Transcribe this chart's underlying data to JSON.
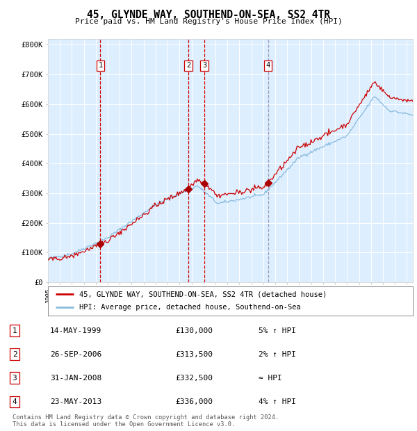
{
  "title": "45, GLYNDE WAY, SOUTHEND-ON-SEA, SS2 4TR",
  "subtitle": "Price paid vs. HM Land Registry's House Price Index (HPI)",
  "ylabel_ticks": [
    "£0",
    "£100K",
    "£200K",
    "£300K",
    "£400K",
    "£500K",
    "£600K",
    "£700K",
    "£800K"
  ],
  "ytick_values": [
    0,
    100000,
    200000,
    300000,
    400000,
    500000,
    600000,
    700000,
    800000
  ],
  "ylim": [
    0,
    820000
  ],
  "xlim_start": 1995.0,
  "xlim_end": 2025.5,
  "bg_color": "#ddeeff",
  "grid_color": "#ffffff",
  "hpi_line_color": "#88bbdd",
  "price_line_color": "#cc0000",
  "sale_marker_color": "#aa0000",
  "dashed_line_red": "#cc0000",
  "dashed_line_blue": "#9999bb",
  "sale_labels": [
    {
      "num": 1,
      "year": 1999.38,
      "price": 130000,
      "label": "1"
    },
    {
      "num": 2,
      "year": 2006.74,
      "price": 313500,
      "label": "2"
    },
    {
      "num": 3,
      "year": 2008.08,
      "price": 332500,
      "label": "3"
    },
    {
      "num": 4,
      "year": 2013.39,
      "price": 336000,
      "label": "4"
    }
  ],
  "sale_line_colors": [
    "#cc0000",
    "#cc0000",
    "#cc0000",
    "#9999bb"
  ],
  "table_rows": [
    {
      "num": "1",
      "date": "14-MAY-1999",
      "price": "£130,000",
      "note": "5% ↑ HPI"
    },
    {
      "num": "2",
      "date": "26-SEP-2006",
      "price": "£313,500",
      "note": "2% ↑ HPI"
    },
    {
      "num": "3",
      "date": "31-JAN-2008",
      "price": "£332,500",
      "note": "≈ HPI"
    },
    {
      "num": "4",
      "date": "23-MAY-2013",
      "price": "£336,000",
      "note": "4% ↑ HPI"
    }
  ],
  "footer": "Contains HM Land Registry data © Crown copyright and database right 2024.\nThis data is licensed under the Open Government Licence v3.0.",
  "legend_line1": "45, GLYNDE WAY, SOUTHEND-ON-SEA, SS2 4TR (detached house)",
  "legend_line2": "HPI: Average price, detached house, Southend-on-Sea"
}
